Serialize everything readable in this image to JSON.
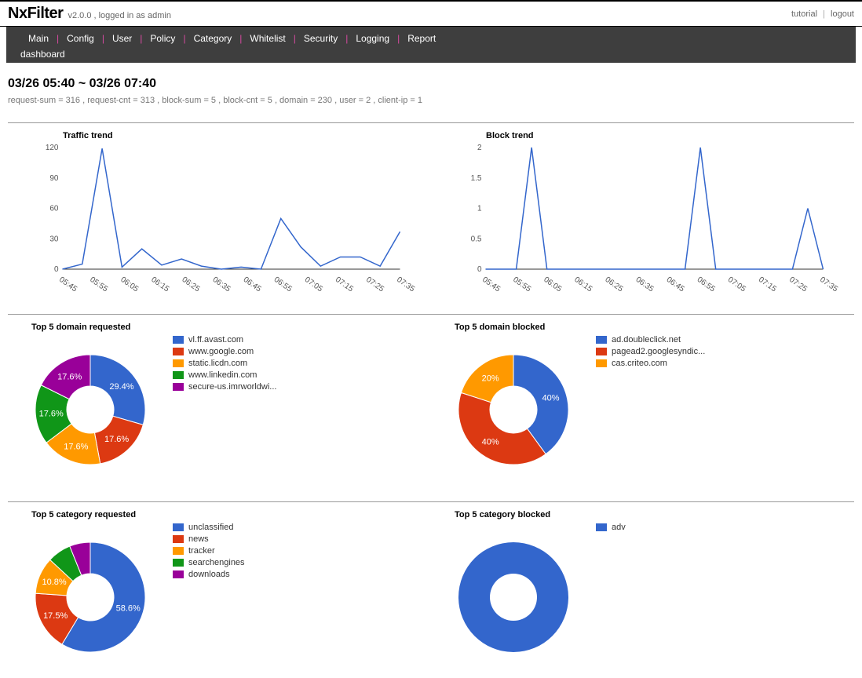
{
  "app": {
    "name": "NxFilter",
    "version_info": "v2.0.0 , logged in as admin"
  },
  "top_links": {
    "tutorial": "tutorial",
    "logout": "logout"
  },
  "nav": {
    "items": [
      "Main",
      "Config",
      "User",
      "Policy",
      "Category",
      "Whitelist",
      "Security",
      "Logging",
      "Report"
    ],
    "sub": "dashboard"
  },
  "time_range": "03/26 05:40 ~ 03/26 07:40",
  "stats": "request-sum = 316 , request-cnt = 313 , block-sum = 5 , block-cnt = 5 , domain = 230 , user = 2 , client-ip = 1",
  "palette": [
    "#3366cc",
    "#dc3912",
    "#ff9900",
    "#109618",
    "#990099"
  ],
  "traffic_trend": {
    "title": "Traffic trend",
    "type": "line",
    "line_color": "#3366cc",
    "ylim": [
      0,
      120
    ],
    "ytick_step": 30,
    "x_labels": [
      "05:45",
      "05:55",
      "06:05",
      "06:15",
      "06:25",
      "06:35",
      "06:45",
      "06:55",
      "07:05",
      "07:15",
      "07:25",
      "07:35"
    ],
    "values": [
      0,
      5,
      119,
      2,
      20,
      4,
      10,
      3,
      0,
      2,
      0,
      50,
      22,
      3,
      12,
      12,
      3,
      37
    ]
  },
  "block_trend": {
    "title": "Block trend",
    "type": "line",
    "line_color": "#3366cc",
    "ylim": [
      0,
      2
    ],
    "ytick_step": 0.5,
    "x_labels": [
      "05:45",
      "05:55",
      "06:05",
      "06:15",
      "06:25",
      "06:35",
      "06:45",
      "06:55",
      "07:05",
      "07:15",
      "07:25",
      "07:35"
    ],
    "values": [
      0,
      0,
      0,
      2,
      0,
      0,
      0,
      0,
      0,
      0,
      0,
      0,
      0,
      0,
      2,
      0,
      0,
      0,
      0,
      0,
      0,
      1,
      0
    ]
  },
  "top_domain_requested": {
    "title": "Top 5 domain requested",
    "type": "donut",
    "slices": [
      {
        "label": "vl.ff.avast.com",
        "pct": 29.4,
        "color": "#3366cc"
      },
      {
        "label": "www.google.com",
        "pct": 17.6,
        "color": "#dc3912"
      },
      {
        "label": "static.licdn.com",
        "pct": 17.6,
        "color": "#ff9900"
      },
      {
        "label": "www.linkedin.com",
        "pct": 17.6,
        "color": "#109618"
      },
      {
        "label": "secure-us.imrworldwi...",
        "pct": 17.6,
        "color": "#990099"
      }
    ]
  },
  "top_domain_blocked": {
    "title": "Top 5 domain blocked",
    "type": "donut",
    "slices": [
      {
        "label": "ad.doubleclick.net",
        "pct": 40,
        "color": "#3366cc"
      },
      {
        "label": "pagead2.googlesyndic...",
        "pct": 40,
        "color": "#dc3912"
      },
      {
        "label": "cas.criteo.com",
        "pct": 20,
        "color": "#ff9900"
      }
    ]
  },
  "top_category_requested": {
    "title": "Top 5 category requested",
    "type": "donut",
    "slices": [
      {
        "label": "unclassified",
        "pct": 58.6,
        "color": "#3366cc"
      },
      {
        "label": "news",
        "pct": 17.5,
        "color": "#dc3912"
      },
      {
        "label": "tracker",
        "pct": 10.8,
        "color": "#ff9900"
      },
      {
        "label": "searchengines",
        "pct": 7.0,
        "color": "#109618"
      },
      {
        "label": "downloads",
        "pct": 6.1,
        "color": "#990099"
      }
    ],
    "label_visible_min_pct": 10
  },
  "top_category_blocked": {
    "title": "Top 5 category blocked",
    "type": "donut",
    "slices": [
      {
        "label": "adv",
        "pct": 100,
        "color": "#3366cc"
      }
    ],
    "hide_labels": true
  }
}
